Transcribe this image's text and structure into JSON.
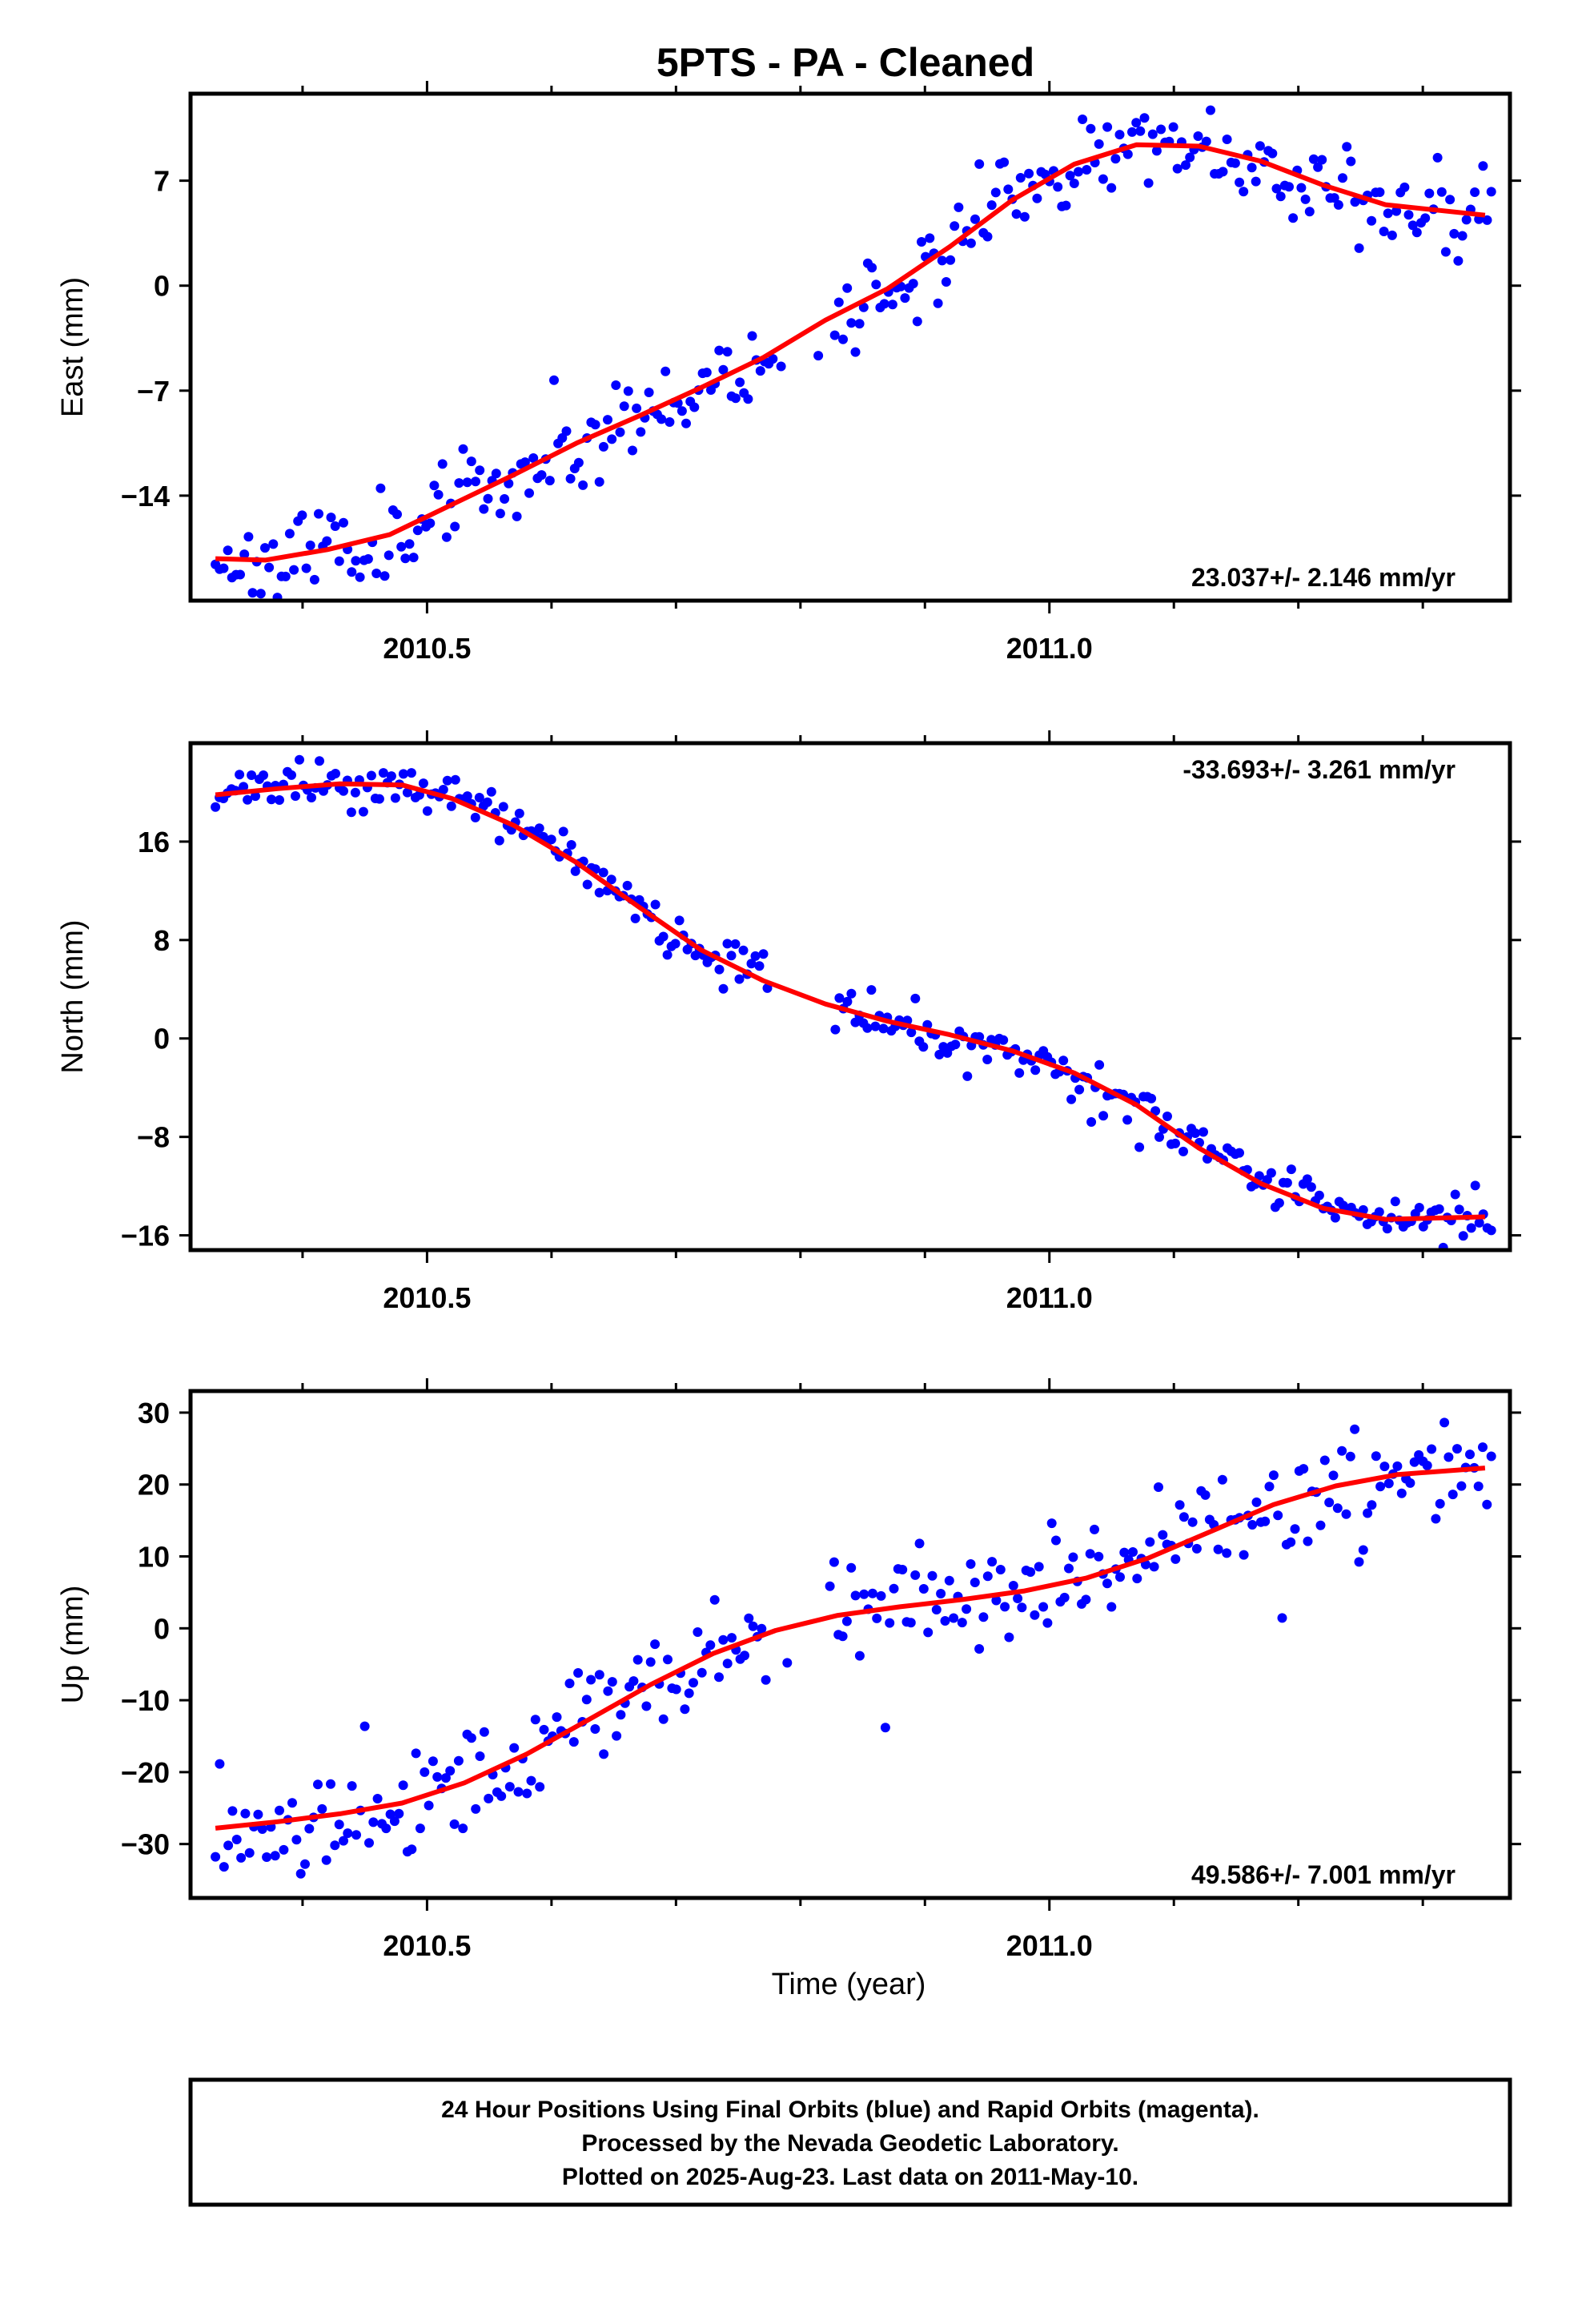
{
  "title": "5PTS  - PA - Cleaned",
  "xlabel": "Time (year)",
  "footer": {
    "line1": "24 Hour Positions Using Final Orbits (blue) and Rapid Orbits (magenta).",
    "line2": "Processed by the Nevada Geodetic Laboratory.",
    "line3": "Plotted on 2025-Aug-23. Last data on 2011-May-10."
  },
  "colors": {
    "points": "#0000ff",
    "fit": "#ff0000",
    "axes": "#000000"
  },
  "chart_data": [
    {
      "type": "scatter",
      "ylabel": "East (mm)",
      "rate_label": "23.037+/- 2.146 mm/yr",
      "rate_position": "bottom-right",
      "xlim": [
        2010.31,
        2011.37
      ],
      "ylim": [
        -21.0,
        12.8
      ],
      "yticks": [
        7,
        0,
        -7,
        -14
      ],
      "ytick_labels": [
        "7",
        "0",
        "−7",
        "−14"
      ],
      "xticks": [
        2010.5,
        2011.0
      ],
      "xtick_labels": [
        "2010.5",
        "2011.0"
      ],
      "fit": {
        "x": [
          2010.33,
          2010.37,
          2010.42,
          2010.47,
          2010.52,
          2010.57,
          2010.62,
          2010.67,
          2010.72,
          2010.77,
          2010.82,
          2010.87,
          2010.92,
          2010.97,
          2011.02,
          2011.07,
          2011.12,
          2011.17,
          2011.22,
          2011.27,
          2011.35
        ],
        "y": [
          -18.2,
          -18.3,
          -17.6,
          -16.6,
          -14.6,
          -12.6,
          -10.5,
          -8.7,
          -6.8,
          -4.8,
          -2.3,
          -0.2,
          2.6,
          5.7,
          8.1,
          9.4,
          9.3,
          8.3,
          6.7,
          5.4,
          4.7
        ]
      },
      "points": {
        "count": 310,
        "x_start": 2010.33,
        "x_end": 2011.355,
        "noise": 1.4,
        "seed": 11,
        "gaps": [
          [
            2010.775,
            2010.825
          ]
        ]
      }
    },
    {
      "type": "scatter",
      "ylabel": "North (mm)",
      "rate_label": "-33.693+/- 3.261 mm/yr",
      "rate_position": "top-right",
      "xlim": [
        2010.31,
        2011.37
      ],
      "ylim": [
        -17.2,
        24.0
      ],
      "yticks": [
        16,
        8,
        0,
        -8,
        -16
      ],
      "ytick_labels": [
        "16",
        "8",
        "0",
        "−8",
        "−16"
      ],
      "xticks": [
        2010.5,
        2011.0
      ],
      "xtick_labels": [
        "2010.5",
        "2011.0"
      ],
      "fit": {
        "x": [
          2010.33,
          2010.38,
          2010.43,
          2010.48,
          2010.52,
          2010.57,
          2010.62,
          2010.67,
          2010.72,
          2010.77,
          2010.82,
          2010.87,
          2010.92,
          2010.97,
          2011.02,
          2011.07,
          2011.12,
          2011.17,
          2011.22,
          2011.27,
          2011.35
        ],
        "y": [
          19.8,
          20.3,
          20.7,
          20.6,
          19.5,
          17.3,
          14.3,
          10.7,
          7.2,
          4.7,
          2.8,
          1.4,
          0.3,
          -1.0,
          -2.8,
          -5.4,
          -8.9,
          -11.8,
          -13.8,
          -14.7,
          -14.5
        ]
      },
      "points": {
        "count": 320,
        "x_start": 2010.33,
        "x_end": 2011.355,
        "noise": 0.9,
        "seed": 23,
        "gaps": [
          [
            2010.775,
            2010.825
          ]
        ]
      }
    },
    {
      "type": "scatter",
      "ylabel": "Up (mm)",
      "rate_label": "49.586+/- 7.001 mm/yr",
      "rate_position": "bottom-right",
      "xlim": [
        2010.31,
        2011.37
      ],
      "ylim": [
        -37.5,
        33.0
      ],
      "yticks": [
        30,
        20,
        10,
        0,
        -10,
        -20,
        -30
      ],
      "ytick_labels": [
        "30",
        "20",
        "10",
        "0",
        "−10",
        "−20",
        "−30"
      ],
      "xticks": [
        2010.5,
        2011.0
      ],
      "xtick_labels": [
        "2010.5",
        "2011.0"
      ],
      "fit": {
        "x": [
          2010.33,
          2010.38,
          2010.43,
          2010.48,
          2010.53,
          2010.58,
          2010.63,
          2010.68,
          2010.73,
          2010.78,
          2010.83,
          2010.88,
          2010.93,
          2010.98,
          2011.03,
          2011.08,
          2011.13,
          2011.18,
          2011.23,
          2011.28,
          2011.35
        ],
        "y": [
          -27.8,
          -26.9,
          -25.8,
          -24.3,
          -21.5,
          -17.5,
          -12.7,
          -7.8,
          -3.5,
          -0.3,
          1.8,
          3.0,
          4.0,
          5.2,
          7.0,
          9.8,
          13.5,
          17.2,
          19.8,
          21.4,
          22.3
        ]
      },
      "points": {
        "count": 300,
        "x_start": 2010.33,
        "x_end": 2011.355,
        "noise": 3.6,
        "seed": 37,
        "gaps": [
          [
            2010.775,
            2010.825
          ]
        ]
      }
    }
  ]
}
